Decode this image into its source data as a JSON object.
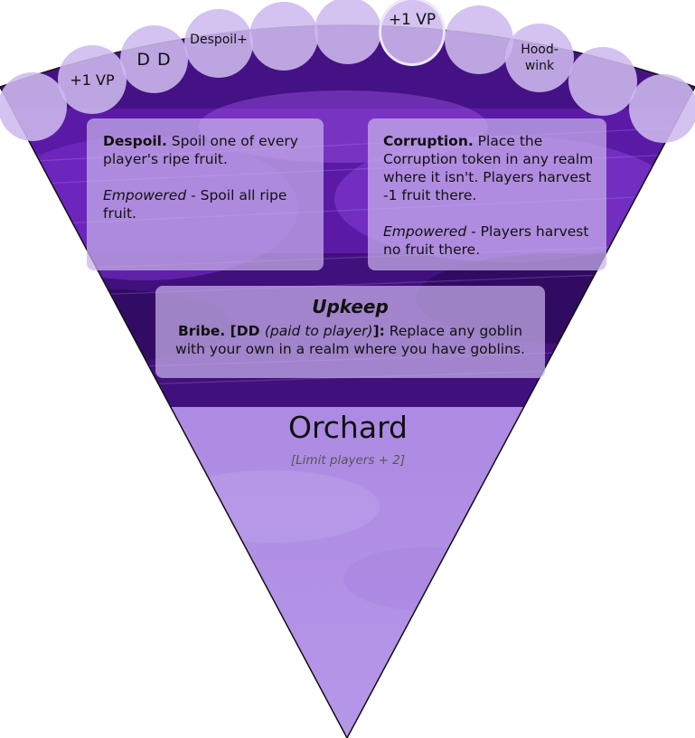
{
  "track": {
    "c1": "",
    "c2": "+1 VP",
    "c3": "D D",
    "c4": "Despoil+",
    "c5": "",
    "c6": "",
    "c7": "+1 VP",
    "c8": "",
    "c9": "Hood-\nwink",
    "c10": "",
    "c11": ""
  },
  "despoil": {
    "name": "Despoil.",
    "text": " Spoil one of every player's ripe fruit.",
    "emp_label": "Empowered",
    "emp_text": " - Spoil all ripe fruit."
  },
  "corruption": {
    "name": "Corruption.",
    "text": " Place the Corruption token in any realm where it isn't. Players harvest -1 fruit there.",
    "emp_label": "Empowered",
    "emp_text": " - Players harvest no fruit there."
  },
  "upkeep": {
    "heading": "Upkeep",
    "name": "Bribe. [DD ",
    "paren": "(paid to player)",
    "close": "]:",
    "text": " Replace any goblin with your own in a realm where you have goblins."
  },
  "realm": {
    "name": "Orchard",
    "limit": "[Limit players + 2]"
  },
  "colors": {
    "wedge_dark": "#3a0f73",
    "wedge_mid": "#6a22c2",
    "wedge_light": "#b493e6",
    "circle_fill": "#cdb9ee",
    "highlight_ring": "#efe6fb"
  }
}
